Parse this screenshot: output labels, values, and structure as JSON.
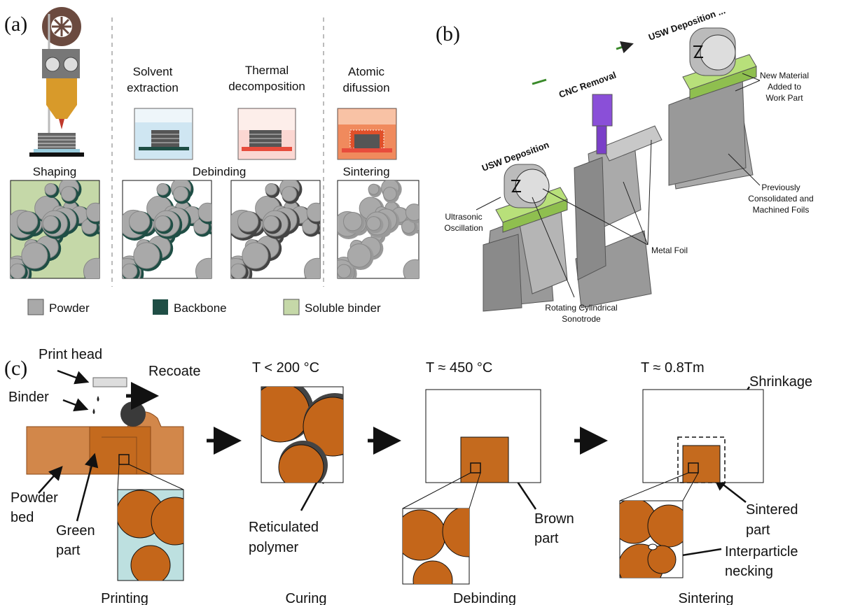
{
  "panel_a": {
    "label": "(a)",
    "processes": [
      [
        "Solvent",
        "extraction"
      ],
      [
        "Thermal",
        "decomposition"
      ],
      [
        "Atomic",
        "difussion"
      ]
    ],
    "stages": [
      "Shaping",
      "Debinding",
      "Sintering"
    ],
    "legend": [
      "Powder",
      "Backbone",
      "Soluble binder"
    ]
  },
  "panel_b": {
    "label": "(b)",
    "steps": [
      "USW Deposition",
      "CNC Removal",
      "USW Deposition ..."
    ],
    "callouts": {
      "new_material": [
        "New Material",
        "Added to",
        "Work Part"
      ],
      "previous": [
        "Previously",
        "Consolidated and",
        "Machined Foils"
      ],
      "metal_foil": [
        "Metal Foil"
      ],
      "oscillation": [
        "Ultrasonic",
        "Oscillation"
      ],
      "sonotrode": [
        "Rotating Cylindrical",
        "Sonotrode"
      ]
    }
  },
  "panel_c": {
    "label": "(c)",
    "printing": {
      "print_head": "Print head",
      "recoate": "Recoate",
      "binder": "Binder",
      "powder_bed": [
        "Powder",
        "bed"
      ],
      "green_part": [
        "Green",
        "part"
      ]
    },
    "temperatures": [
      "T < 200 °C",
      "T ≈ 450 °C",
      "T ≈ 0.8Tm"
    ],
    "curing": [
      "Reticulated",
      "polymer"
    ],
    "debinding": [
      "Brown",
      "part"
    ],
    "sintering": {
      "shrinkage": "Shrinkage",
      "sintered_part": [
        "Sintered",
        "part"
      ],
      "necking": [
        "Interparticle",
        "necking"
      ]
    },
    "steps": [
      "Printing",
      "Curing",
      "Debinding",
      "Sintering"
    ]
  }
}
